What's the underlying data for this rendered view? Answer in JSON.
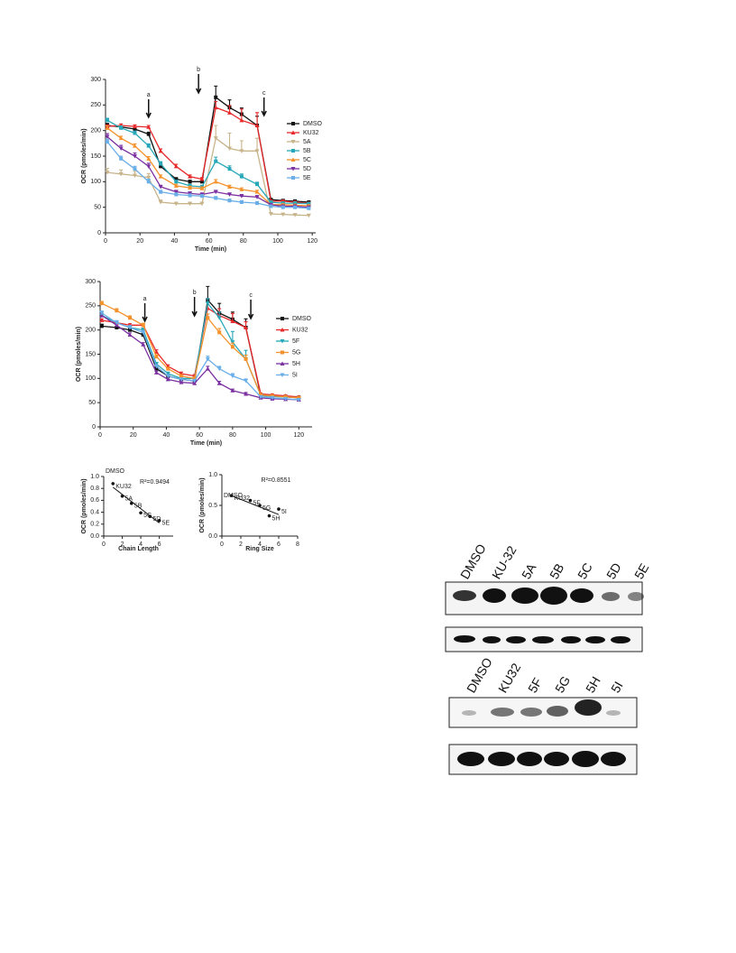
{
  "chart_data": [
    {
      "type": "line",
      "xlabel": "Time (min)",
      "ylabel": "OCR (pmoles/min)",
      "x": [
        1,
        9,
        17,
        25,
        32,
        41,
        49,
        56,
        64,
        72,
        79,
        88,
        96,
        103,
        110,
        118
      ],
      "xlim": [
        0,
        122
      ],
      "xticks": [
        0,
        20,
        40,
        60,
        80,
        100,
        120
      ],
      "ylim": [
        0,
        300
      ],
      "yticks": [
        0,
        50,
        100,
        150,
        200,
        250,
        300
      ],
      "annotations": [
        {
          "text": "a",
          "x": 25
        },
        {
          "text": "b",
          "x": 54
        },
        {
          "text": "c",
          "x": 92
        }
      ],
      "series": [
        {
          "name": "DMSO",
          "color": "#111111",
          "values": [
            210,
            207,
            203,
            193,
            130,
            105,
            100,
            100,
            265,
            245,
            232,
            210,
            65,
            63,
            62,
            60
          ],
          "errors": [
            4,
            3,
            3,
            4,
            5,
            3,
            3,
            3,
            22,
            15,
            12,
            18,
            2,
            2,
            2,
            2
          ]
        },
        {
          "name": "KU32",
          "color": "#e8282a",
          "values": [
            208,
            210,
            208,
            207,
            160,
            130,
            110,
            105,
            245,
            235,
            220,
            210,
            62,
            62,
            60,
            58
          ],
          "errors": [
            3,
            3,
            3,
            3,
            4,
            4,
            3,
            3,
            12,
            14,
            22,
            25,
            2,
            2,
            2,
            2
          ]
        },
        {
          "name": "5A",
          "color": "#c8b48a",
          "values": [
            118,
            115,
            112,
            108,
            60,
            57,
            57,
            57,
            185,
            165,
            160,
            160,
            37,
            36,
            35,
            34
          ],
          "errors": [
            8,
            8,
            8,
            8,
            4,
            3,
            3,
            3,
            25,
            30,
            20,
            25,
            2,
            2,
            2,
            2
          ]
        },
        {
          "name": "5B",
          "color": "#27a8b8",
          "values": [
            220,
            205,
            195,
            170,
            135,
            100,
            92,
            90,
            140,
            125,
            110,
            95,
            60,
            58,
            58,
            57
          ],
          "errors": [
            4,
            4,
            4,
            4,
            4,
            3,
            3,
            3,
            8,
            6,
            5,
            4,
            2,
            2,
            2,
            2
          ]
        },
        {
          "name": "5C",
          "color": "#f5922b",
          "values": [
            205,
            185,
            170,
            145,
            110,
            92,
            88,
            87,
            100,
            90,
            85,
            80,
            55,
            55,
            54,
            53
          ],
          "errors": [
            4,
            4,
            4,
            4,
            3,
            3,
            3,
            3,
            4,
            3,
            3,
            3,
            2,
            2,
            2,
            2
          ]
        },
        {
          "name": "5D",
          "color": "#7b2fa0",
          "values": [
            188,
            165,
            150,
            130,
            90,
            80,
            77,
            75,
            80,
            75,
            72,
            70,
            55,
            52,
            52,
            50
          ],
          "errors": [
            6,
            6,
            6,
            6,
            3,
            3,
            3,
            3,
            3,
            3,
            3,
            3,
            2,
            2,
            2,
            2
          ]
        },
        {
          "name": "5E",
          "color": "#6aaee8",
          "values": [
            178,
            145,
            125,
            100,
            80,
            75,
            73,
            72,
            68,
            63,
            60,
            58,
            52,
            50,
            50,
            48
          ],
          "errors": [
            5,
            5,
            5,
            5,
            3,
            3,
            3,
            3,
            3,
            3,
            3,
            3,
            2,
            2,
            2,
            2
          ]
        }
      ]
    },
    {
      "type": "line",
      "xlabel": "Time (min)",
      "ylabel": "OCR (pmoles/min)",
      "x": [
        1,
        10,
        18,
        26,
        34,
        41,
        49,
        57,
        65,
        72,
        80,
        88,
        97,
        104,
        112,
        120
      ],
      "xlim": [
        0,
        128
      ],
      "xticks": [
        0,
        20,
        40,
        60,
        80,
        100,
        120
      ],
      "ylim": [
        0,
        300
      ],
      "yticks": [
        0,
        50,
        100,
        150,
        200,
        250,
        300
      ],
      "annotations": [
        {
          "text": "a",
          "x": 27
        },
        {
          "text": "b",
          "x": 57
        },
        {
          "text": "c",
          "x": 91
        }
      ],
      "series": [
        {
          "name": "DMSO",
          "color": "#111111",
          "values": [
            208,
            205,
            200,
            190,
            120,
            105,
            98,
            95,
            262,
            235,
            222,
            205,
            65,
            63,
            62,
            60
          ],
          "errors": [
            4,
            3,
            3,
            3,
            4,
            3,
            3,
            3,
            28,
            20,
            15,
            18,
            2,
            2,
            2,
            2
          ]
        },
        {
          "name": "KU32",
          "color": "#e8282a",
          "values": [
            220,
            215,
            210,
            210,
            155,
            125,
            110,
            105,
            245,
            230,
            218,
            205,
            68,
            66,
            64,
            62
          ],
          "errors": [
            3,
            3,
            3,
            3,
            4,
            3,
            3,
            3,
            12,
            14,
            16,
            12,
            2,
            2,
            2,
            2
          ]
        },
        {
          "name": "5F",
          "color": "#27a8b8",
          "values": [
            230,
            215,
            205,
            200,
            130,
            110,
            100,
            100,
            255,
            225,
            175,
            140,
            65,
            63,
            62,
            60
          ],
          "errors": [
            4,
            4,
            4,
            4,
            3,
            3,
            3,
            3,
            10,
            12,
            22,
            18,
            2,
            2,
            2,
            2
          ]
        },
        {
          "name": "5G",
          "color": "#f5922b",
          "values": [
            255,
            240,
            225,
            210,
            145,
            120,
            105,
            100,
            225,
            195,
            165,
            140,
            66,
            64,
            62,
            60
          ],
          "errors": [
            4,
            4,
            4,
            4,
            4,
            3,
            3,
            3,
            8,
            8,
            8,
            8,
            2,
            2,
            2,
            2
          ]
        },
        {
          "name": "5H",
          "color": "#7b2fa0",
          "values": [
            230,
            210,
            190,
            170,
            112,
            98,
            92,
            90,
            120,
            90,
            75,
            68,
            60,
            58,
            57,
            56
          ],
          "errors": [
            4,
            4,
            4,
            4,
            3,
            3,
            3,
            3,
            5,
            4,
            3,
            3,
            2,
            2,
            2,
            2
          ]
        },
        {
          "name": "5I",
          "color": "#6aaee8",
          "values": [
            235,
            215,
            205,
            195,
            125,
            105,
            98,
            95,
            140,
            120,
            105,
            95,
            62,
            60,
            58,
            56
          ],
          "errors": [
            4,
            4,
            4,
            4,
            3,
            3,
            3,
            3,
            6,
            5,
            5,
            4,
            2,
            2,
            2,
            2
          ]
        }
      ]
    },
    {
      "type": "scatter",
      "xlabel": "Chain Length",
      "ylabel": "OCR (pmoles/min)",
      "annotation": "R²=0.9494",
      "x": [
        1,
        2,
        3,
        4,
        5,
        6
      ],
      "values": [
        0.88,
        0.67,
        0.55,
        0.39,
        0.33,
        0.26
      ],
      "point_labels": [
        "KU32",
        "5A",
        "5B",
        "5C",
        "5D",
        "5E"
      ],
      "annotations": [
        {
          "text": "DMSO",
          "x": 0,
          "y": 1.0
        }
      ],
      "fit": {
        "x": [
          1,
          6
        ],
        "y": [
          0.82,
          0.22
        ]
      },
      "xlim": [
        0,
        7.5
      ],
      "xticks": [
        0,
        2,
        4,
        6
      ],
      "ylim": [
        0,
        1.0
      ],
      "yticks": [
        {
          "value": 0,
          "label": "0.0"
        },
        {
          "value": 0.2,
          "label": "0.2"
        },
        {
          "value": 0.4,
          "label": "0.4"
        },
        {
          "value": 0.6,
          "label": "0.6"
        },
        {
          "value": 0.8,
          "label": "0.8"
        },
        {
          "value": 1.0,
          "label": "1.0"
        }
      ]
    },
    {
      "type": "scatter",
      "xlabel": "Ring Size",
      "ylabel": "OCR (pmoles/min)",
      "annotation": "R²=0.8551",
      "x": [
        1,
        3,
        4,
        5,
        6
      ],
      "values": [
        0.66,
        0.58,
        0.5,
        0.33,
        0.44
      ],
      "point_labels": [
        "KU32",
        "5F",
        "5G",
        "5H",
        "5I"
      ],
      "annotations": [
        {
          "text": "DMSO",
          "x": 0,
          "y": 0.66
        }
      ],
      "fit": {
        "x": [
          1,
          6
        ],
        "y": [
          0.66,
          0.35
        ]
      },
      "xlim": [
        0,
        8
      ],
      "xticks": [
        0,
        2,
        4,
        6,
        8
      ],
      "ylim": [
        0,
        1.0
      ],
      "yticks": [
        {
          "value": 0,
          "label": "0.0"
        },
        {
          "value": 0.5,
          "label": "0.5"
        },
        {
          "value": 1.0,
          "label": "1.0"
        }
      ]
    }
  ],
  "blots": [
    {
      "lanes": [
        "DMSO",
        "KU-32",
        "5A",
        "5B",
        "5C",
        "5D",
        "5E"
      ]
    },
    {
      "lanes": [
        "DMSO",
        "KU32",
        "5F",
        "5G",
        "5H",
        "5I"
      ]
    }
  ]
}
